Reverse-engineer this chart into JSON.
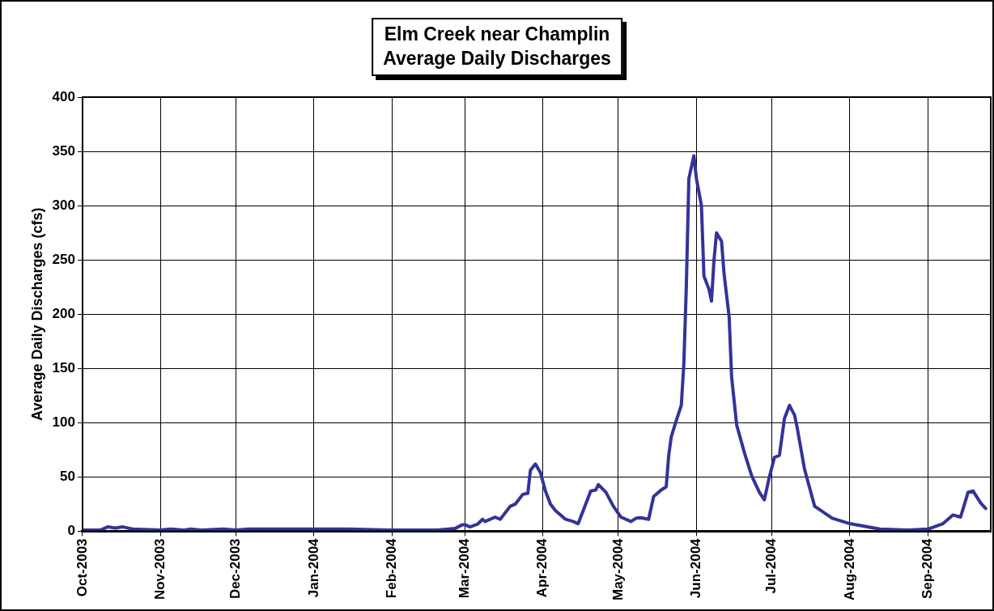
{
  "chart_data": {
    "type": "line",
    "title": "Elm Creek near Champlin\nAverage Daily Discharges",
    "ylabel": "Average Daily Discharges (cfs)",
    "x": [
      "2003-10-01",
      "2003-10-08",
      "2003-10-11",
      "2003-10-14",
      "2003-10-17",
      "2003-10-21",
      "2003-11-01",
      "2003-11-05",
      "2003-11-10",
      "2003-11-13",
      "2003-11-17",
      "2003-11-26",
      "2003-12-01",
      "2003-12-06",
      "2003-12-20",
      "2004-01-15",
      "2004-01-31",
      "2004-02-10",
      "2004-02-19",
      "2004-02-26",
      "2004-02-29",
      "2004-03-01",
      "2004-03-03",
      "2004-03-06",
      "2004-03-08",
      "2004-03-09",
      "2004-03-13",
      "2004-03-15",
      "2004-03-19",
      "2004-03-21",
      "2004-03-24",
      "2004-03-26",
      "2004-03-27",
      "2004-03-29",
      "2004-03-31",
      "2004-04-02",
      "2004-04-04",
      "2004-04-06",
      "2004-04-10",
      "2004-04-13",
      "2004-04-15",
      "2004-04-17",
      "2004-04-20",
      "2004-04-22",
      "2004-04-23",
      "2004-04-26",
      "2004-04-29",
      "2004-05-02",
      "2004-05-06",
      "2004-05-08",
      "2004-05-10",
      "2004-05-13",
      "2004-05-15",
      "2004-05-18",
      "2004-05-20",
      "2004-05-21",
      "2004-05-22",
      "2004-05-24",
      "2004-05-26",
      "2004-05-27",
      "2004-05-28",
      "2004-05-29",
      "2004-05-31",
      "2004-06-01",
      "2004-06-03",
      "2004-06-04",
      "2004-06-06",
      "2004-06-07",
      "2004-06-08",
      "2004-06-09",
      "2004-06-11",
      "2004-06-12",
      "2004-06-14",
      "2004-06-15",
      "2004-06-17",
      "2004-06-20",
      "2004-06-23",
      "2004-06-26",
      "2004-06-28",
      "2004-06-30",
      "2004-07-02",
      "2004-07-04",
      "2004-07-06",
      "2004-07-08",
      "2004-07-10",
      "2004-07-11",
      "2004-07-14",
      "2004-07-18",
      "2004-07-25",
      "2004-08-01",
      "2004-08-08",
      "2004-08-13",
      "2004-08-24",
      "2004-09-01",
      "2004-09-07",
      "2004-09-11",
      "2004-09-14",
      "2004-09-17",
      "2004-09-19",
      "2004-09-22",
      "2004-09-24"
    ],
    "series": [
      {
        "color": "#333399",
        "values": [
          1,
          1,
          4,
          3,
          4,
          2,
          1,
          2,
          1,
          2,
          1,
          2,
          1,
          2,
          2,
          2,
          1,
          1,
          1,
          2.5,
          6,
          6,
          4,
          6.5,
          11,
          9,
          13,
          11,
          23,
          25,
          34,
          35,
          56,
          62,
          54,
          37,
          25,
          19,
          11,
          9,
          7,
          19,
          37,
          38,
          43,
          36,
          23,
          13,
          9,
          12,
          12.5,
          11,
          32,
          38,
          41,
          70,
          87,
          102,
          116,
          154,
          226,
          325,
          346,
          325,
          300,
          235,
          223,
          212,
          250,
          275,
          267,
          237,
          198,
          142,
          98,
          73,
          51,
          36,
          29,
          50,
          68,
          70,
          104,
          116,
          107,
          96,
          57,
          23,
          12,
          7,
          4,
          2,
          1,
          2,
          7,
          15,
          13,
          36,
          37,
          26,
          21
        ]
      }
    ],
    "xlim": [
      "2003-10-01",
      "2004-09-26"
    ],
    "xticks": [
      {
        "value": "2003-10-01",
        "label": "Oct-2003"
      },
      {
        "value": "2003-11-01",
        "label": "Nov-2003"
      },
      {
        "value": "2003-12-01",
        "label": "Dec-2003"
      },
      {
        "value": "2004-01-01",
        "label": "Jan-2004"
      },
      {
        "value": "2004-02-01",
        "label": "Feb-2004"
      },
      {
        "value": "2004-03-01",
        "label": "Mar-2004"
      },
      {
        "value": "2004-04-01",
        "label": "Apr-2004"
      },
      {
        "value": "2004-05-01",
        "label": "May-2004"
      },
      {
        "value": "2004-06-01",
        "label": "Jun-2004"
      },
      {
        "value": "2004-07-01",
        "label": "Jul-2004"
      },
      {
        "value": "2004-08-01",
        "label": "Aug-2004"
      },
      {
        "value": "2004-09-01",
        "label": "Sep-2004"
      }
    ],
    "ylim": [
      0,
      400
    ],
    "yticks": [
      0,
      50,
      100,
      150,
      200,
      250,
      300,
      350,
      400
    ],
    "grid": true,
    "legend": false,
    "marker": "none",
    "line_style": "solid"
  }
}
